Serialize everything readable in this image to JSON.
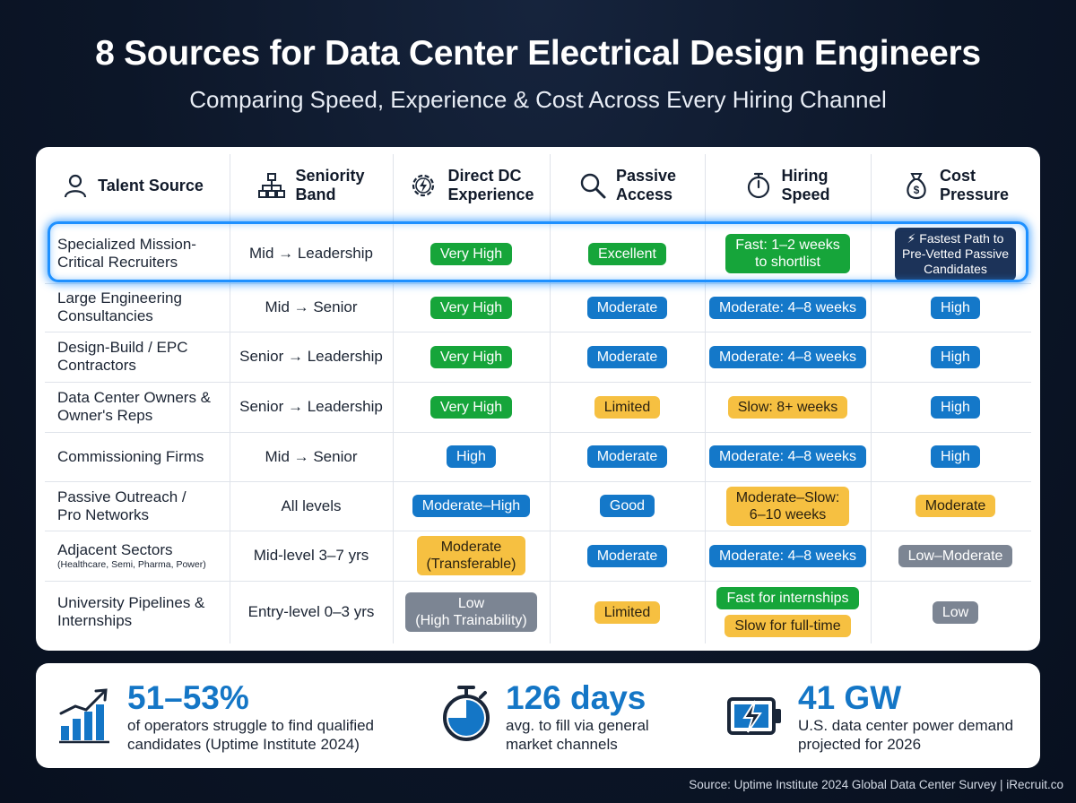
{
  "title": "8 Sources for Data Center Electrical Design Engineers",
  "subtitle": "Comparing Speed, Experience & Cost Across Every Hiring Channel",
  "columns": [
    {
      "icon": "person-icon",
      "line1": "Talent Source",
      "line2": ""
    },
    {
      "icon": "org-chart-icon",
      "line1": "Seniority",
      "line2": "Band"
    },
    {
      "icon": "lightning-gear-icon",
      "line1": "Direct DC",
      "line2": "Experience"
    },
    {
      "icon": "magnifier-icon",
      "line1": "Passive",
      "line2": "Access"
    },
    {
      "icon": "stopwatch-icon",
      "line1": "Hiring",
      "line2": "Speed"
    },
    {
      "icon": "money-bag-icon",
      "line1": "Cost",
      "line2": "Pressure"
    }
  ],
  "rows": [
    {
      "source": [
        "Specialized Mission-",
        "Critical Recruiters"
      ],
      "source_note": "",
      "seniority": "Mid → Leadership",
      "experience": {
        "lines": [
          "Very High"
        ],
        "color": "green"
      },
      "passive": {
        "lines": [
          "Excellent"
        ],
        "color": "green"
      },
      "speed": [
        {
          "lines": [
            "Fast: 1–2 weeks",
            "to shortlist"
          ],
          "color": "green"
        }
      ],
      "cost": {
        "lines": [
          "⚡ Fastest Path to",
          "Pre-Vetted Passive",
          "Candidates"
        ],
        "color": "navy"
      },
      "highlighted": true
    },
    {
      "source": [
        "Large Engineering",
        "Consultancies"
      ],
      "source_note": "",
      "seniority": "Mid → Senior",
      "experience": {
        "lines": [
          "Very High"
        ],
        "color": "green"
      },
      "passive": {
        "lines": [
          "Moderate"
        ],
        "color": "blue"
      },
      "speed": [
        {
          "lines": [
            "Moderate: 4–8 weeks"
          ],
          "color": "blue"
        }
      ],
      "cost": {
        "lines": [
          "High"
        ],
        "color": "blue"
      }
    },
    {
      "source": [
        "Design-Build / EPC",
        "Contractors"
      ],
      "source_note": "",
      "seniority": "Senior → Leadership",
      "experience": {
        "lines": [
          "Very High"
        ],
        "color": "green"
      },
      "passive": {
        "lines": [
          "Moderate"
        ],
        "color": "blue"
      },
      "speed": [
        {
          "lines": [
            "Moderate: 4–8 weeks"
          ],
          "color": "blue"
        }
      ],
      "cost": {
        "lines": [
          "High"
        ],
        "color": "blue"
      }
    },
    {
      "source": [
        "Data Center Owners &",
        "Owner's Reps"
      ],
      "source_note": "",
      "seniority": "Senior → Leadership",
      "experience": {
        "lines": [
          "Very High"
        ],
        "color": "green"
      },
      "passive": {
        "lines": [
          "Limited"
        ],
        "color": "yellow"
      },
      "speed": [
        {
          "lines": [
            "Slow: 8+ weeks"
          ],
          "color": "yellow"
        }
      ],
      "cost": {
        "lines": [
          "High"
        ],
        "color": "blue"
      }
    },
    {
      "source": [
        "Commissioning Firms"
      ],
      "source_note": "",
      "seniority": "Mid → Senior",
      "experience": {
        "lines": [
          "High"
        ],
        "color": "blue"
      },
      "passive": {
        "lines": [
          "Moderate"
        ],
        "color": "blue"
      },
      "speed": [
        {
          "lines": [
            "Moderate: 4–8 weeks"
          ],
          "color": "blue"
        }
      ],
      "cost": {
        "lines": [
          "High"
        ],
        "color": "blue"
      }
    },
    {
      "source": [
        "Passive Outreach /",
        "Pro Networks"
      ],
      "source_note": "",
      "seniority": "All levels",
      "experience": {
        "lines": [
          "Moderate–High"
        ],
        "color": "blue"
      },
      "passive": {
        "lines": [
          "Good"
        ],
        "color": "blue"
      },
      "speed": [
        {
          "lines": [
            "Moderate–Slow:",
            "6–10 weeks"
          ],
          "color": "yellow"
        }
      ],
      "cost": {
        "lines": [
          "Moderate"
        ],
        "color": "yellow"
      }
    },
    {
      "source": [
        "Adjacent Sectors"
      ],
      "source_note": "(Healthcare, Semi, Pharma, Power)",
      "seniority": "Mid-level 3–7 yrs",
      "experience": {
        "lines": [
          "Moderate",
          "(Transferable)"
        ],
        "color": "yellow"
      },
      "passive": {
        "lines": [
          "Moderate"
        ],
        "color": "blue"
      },
      "speed": [
        {
          "lines": [
            "Moderate: 4–8 weeks"
          ],
          "color": "blue"
        }
      ],
      "cost": {
        "lines": [
          "Low–Moderate"
        ],
        "color": "gray"
      }
    },
    {
      "source": [
        "University Pipelines &",
        "Internships"
      ],
      "source_note": "",
      "seniority": "Entry-level 0–3 yrs",
      "experience": {
        "lines": [
          "Low",
          "(High Trainability)"
        ],
        "color": "gray"
      },
      "passive": {
        "lines": [
          "Limited"
        ],
        "color": "yellow"
      },
      "speed": [
        {
          "lines": [
            "Fast for internships"
          ],
          "color": "green"
        },
        {
          "lines": [
            "Slow for full-time"
          ],
          "color": "yellow"
        }
      ],
      "cost": {
        "lines": [
          "Low"
        ],
        "color": "gray"
      }
    }
  ],
  "stats": [
    {
      "icon": "growth-chart-icon",
      "value": "51–53%",
      "desc": [
        "of operators struggle to find qualified",
        "candidates (Uptime Institute 2024)"
      ]
    },
    {
      "icon": "stopwatch-icon",
      "value": "126 days",
      "desc": [
        "avg. to fill via general",
        "market channels"
      ]
    },
    {
      "icon": "battery-bolt-icon",
      "value": "41 GW",
      "desc": [
        "U.S. data center power demand",
        "projected for 2026"
      ]
    }
  ],
  "source_line": "Source: Uptime Institute 2024 Global Data Center Survey | iRecruit.co",
  "colors": {
    "green": "#16a53a",
    "blue": "#1478c9",
    "yellow": "#f6c041",
    "gray": "#7c8593",
    "navy": "#1c3359",
    "accent": "#1476c6",
    "highlight": "#1e90ff"
  }
}
